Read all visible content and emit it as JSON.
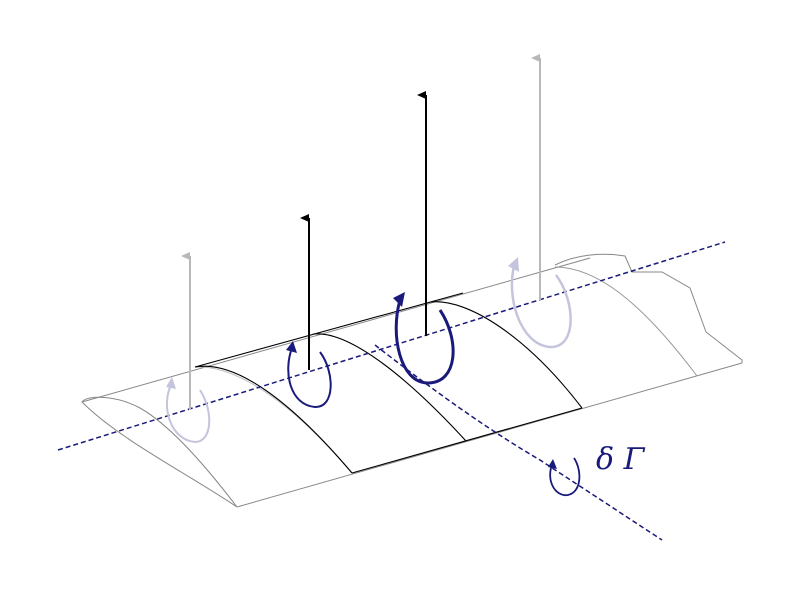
{
  "diagram": {
    "label": "δ Γ",
    "colors": {
      "black": "#000000",
      "navy": "#1a1a7a",
      "grey": "#b8b8b8",
      "light_navy": "#c4c4dc",
      "outline": "#888888",
      "background": "#ffffff"
    }
  }
}
